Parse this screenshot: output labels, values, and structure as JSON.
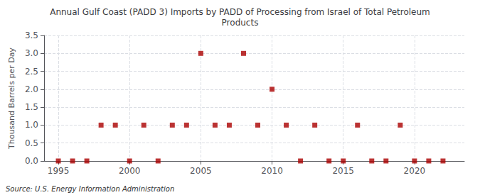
{
  "chart_data": {
    "type": "scatter",
    "title": "Annual Gulf Coast (PADD 3) Imports by PADD of Processing from Israel of Total Petroleum\nProducts",
    "ylabel": "Thousand Barrels per Day",
    "annotation": "Source: U.S. Energy Information Administration",
    "x": [
      1995,
      1996,
      1997,
      1998,
      1999,
      2000,
      2001,
      2002,
      2003,
      2004,
      2005,
      2006,
      2007,
      2008,
      2009,
      2010,
      2011,
      2012,
      2013,
      2014,
      2015,
      2016,
      2017,
      2018,
      2019,
      2020,
      2021,
      2022
    ],
    "values": [
      0.0,
      0.0,
      0.0,
      1.0,
      1.0,
      0.0,
      1.0,
      0.0,
      1.0,
      1.0,
      3.0,
      1.0,
      1.0,
      3.0,
      1.0,
      2.0,
      1.0,
      0.0,
      1.0,
      0.0,
      0.0,
      1.0,
      0.0,
      0.0,
      1.0,
      0.0,
      0.0,
      0.0
    ],
    "color": "#aa0000",
    "marker": "square",
    "xlim": [
      1994,
      2023.5
    ],
    "xticks": [
      1995,
      2000,
      2005,
      2010,
      2015,
      2020
    ],
    "ylim": [
      0.0,
      3.5
    ],
    "yticks": [
      {
        "value": 0,
        "label": "0.0"
      },
      0.5,
      {
        "value": 1,
        "label": "1.0"
      },
      1.5,
      {
        "value": 2,
        "label": "2.0"
      },
      2.5,
      {
        "value": 3,
        "label": "3.0"
      },
      3.5
    ],
    "grid": true
  }
}
